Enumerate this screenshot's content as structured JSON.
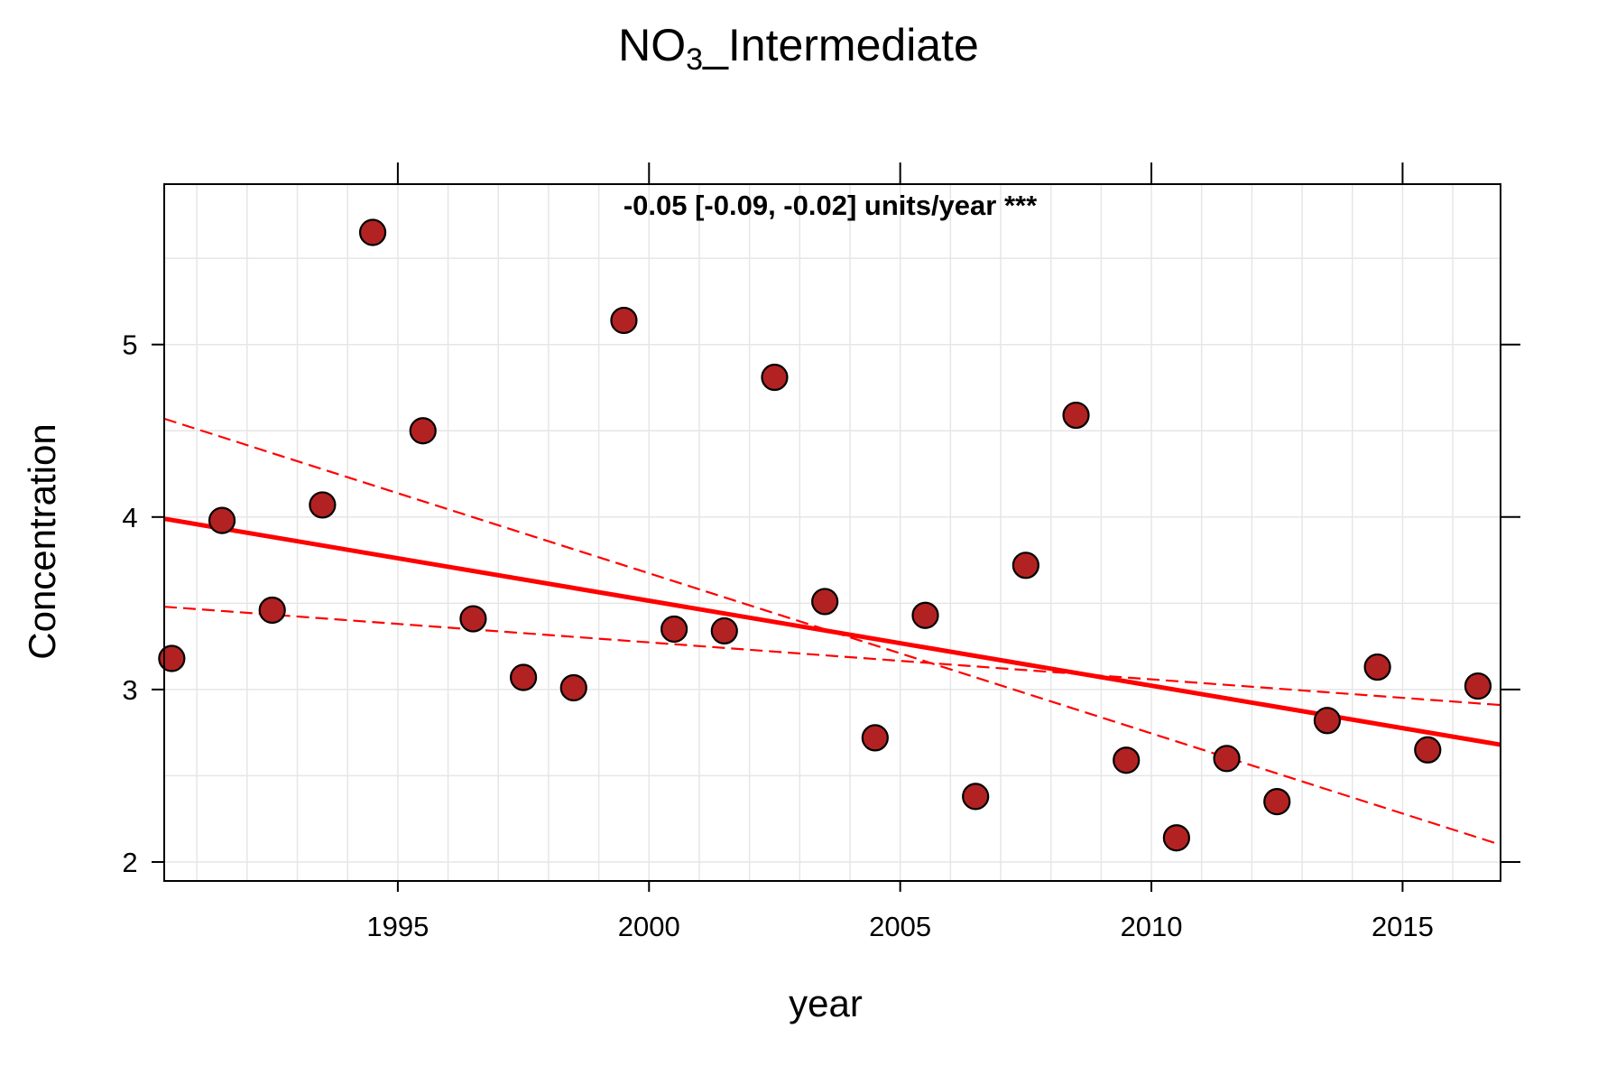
{
  "chart_data": {
    "type": "scatter",
    "title_main": "NO",
    "title_sub": "3",
    "title_rest": "_Intermediate",
    "annotation": "-0.05 [-0.09, -0.02] units/year ***",
    "xlabel": "year",
    "ylabel": "Concentration",
    "xlim": [
      1990.35,
      2016.95
    ],
    "ylim": [
      1.89,
      5.93
    ],
    "x_ticks": [
      1995,
      2000,
      2005,
      2010,
      2015
    ],
    "y_ticks": [
      2,
      3,
      4,
      5
    ],
    "x_tick_labels": [
      "1995",
      "2000",
      "2005",
      "2010",
      "2015"
    ],
    "y_tick_labels": [
      "2",
      "3",
      "4",
      "5"
    ],
    "grid": true,
    "points": {
      "x": [
        1990.5,
        1991.5,
        1992.5,
        1993.5,
        1994.5,
        1995.5,
        1996.5,
        1997.5,
        1998.5,
        1999.5,
        2000.5,
        2001.5,
        2002.5,
        2003.5,
        2004.5,
        2005.5,
        2006.5,
        2007.5,
        2008.5,
        2009.5,
        2010.5,
        2011.5,
        2012.5,
        2013.5,
        2014.5,
        2015.5,
        2016.5
      ],
      "y": [
        3.18,
        3.98,
        3.46,
        4.07,
        5.65,
        4.5,
        3.41,
        3.07,
        3.01,
        5.14,
        3.35,
        3.34,
        4.81,
        3.51,
        2.72,
        3.43,
        2.38,
        3.72,
        4.59,
        2.59,
        2.14,
        2.6,
        2.35,
        2.82,
        3.13,
        2.65,
        3.02
      ]
    },
    "trend": {
      "x": [
        1990.35,
        2016.95
      ],
      "y": [
        3.99,
        2.68
      ]
    },
    "lower_ci": {
      "x": [
        1990.35,
        2016.95
      ],
      "y": [
        4.57,
        2.1
      ]
    },
    "upper_ci": {
      "x": [
        1990.35,
        2016.95
      ],
      "y": [
        3.48,
        2.91
      ]
    },
    "colors": {
      "point_fill": "#b22222",
      "point_edge": "#000000",
      "trend": "#ff0000",
      "annotation": "#006400",
      "grid": "#e6e6e6"
    }
  }
}
